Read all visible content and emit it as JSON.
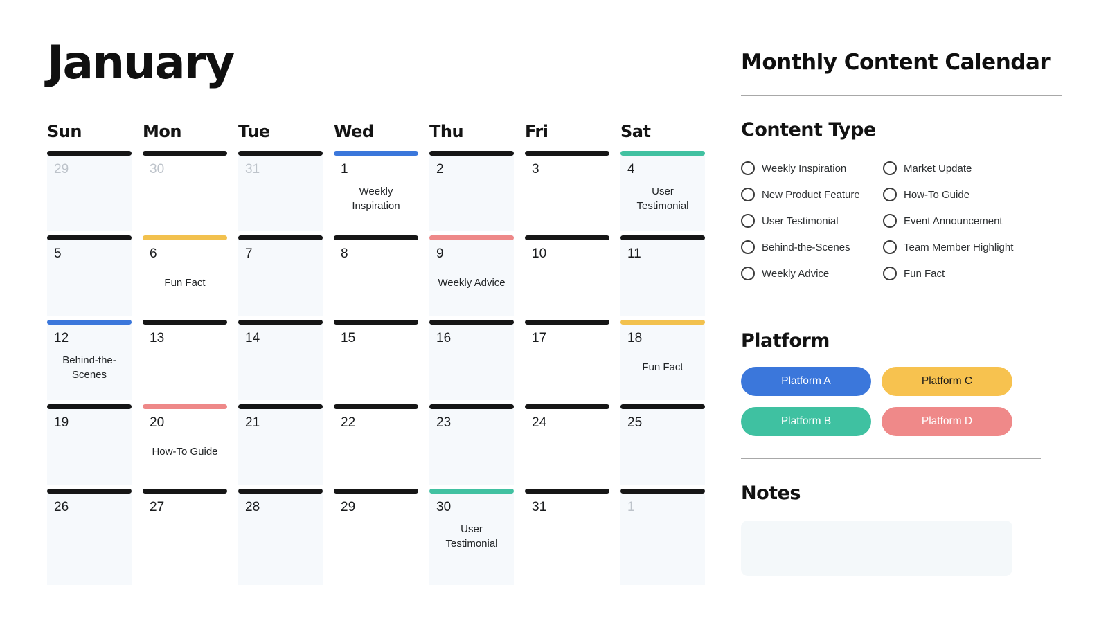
{
  "page": {
    "month_title": "January",
    "sidebar_title": "Monthly Content Calendar"
  },
  "colors": {
    "bars": {
      "black": "#161616",
      "blue": "#3b77db",
      "yellow": "#f2c14e",
      "salmon": "#ee8888",
      "teal": "#41c1a1"
    },
    "cell_tint": "#f6f9fc"
  },
  "calendar": {
    "weekdays": [
      "Sun",
      "Mon",
      "Tue",
      "Wed",
      "Thu",
      "Fri",
      "Sat"
    ],
    "cells": [
      {
        "day": "29",
        "muted": true,
        "bar": "black",
        "label": ""
      },
      {
        "day": "30",
        "muted": true,
        "bar": "black",
        "label": ""
      },
      {
        "day": "31",
        "muted": true,
        "bar": "black",
        "label": ""
      },
      {
        "day": "1",
        "muted": false,
        "bar": "blue",
        "label": "Weekly Inspiration"
      },
      {
        "day": "2",
        "muted": false,
        "bar": "black",
        "label": ""
      },
      {
        "day": "3",
        "muted": false,
        "bar": "black",
        "label": ""
      },
      {
        "day": "4",
        "muted": false,
        "bar": "teal",
        "label": "User Testimonial"
      },
      {
        "day": "5",
        "muted": false,
        "bar": "black",
        "label": ""
      },
      {
        "day": "6",
        "muted": false,
        "bar": "yellow",
        "label": "Fun Fact"
      },
      {
        "day": "7",
        "muted": false,
        "bar": "black",
        "label": ""
      },
      {
        "day": "8",
        "muted": false,
        "bar": "black",
        "label": ""
      },
      {
        "day": "9",
        "muted": false,
        "bar": "salmon",
        "label": "Weekly Advice"
      },
      {
        "day": "10",
        "muted": false,
        "bar": "black",
        "label": ""
      },
      {
        "day": "11",
        "muted": false,
        "bar": "black",
        "label": ""
      },
      {
        "day": "12",
        "muted": false,
        "bar": "blue",
        "label": "Behind-the-Scenes"
      },
      {
        "day": "13",
        "muted": false,
        "bar": "black",
        "label": ""
      },
      {
        "day": "14",
        "muted": false,
        "bar": "black",
        "label": ""
      },
      {
        "day": "15",
        "muted": false,
        "bar": "black",
        "label": ""
      },
      {
        "day": "16",
        "muted": false,
        "bar": "black",
        "label": ""
      },
      {
        "day": "17",
        "muted": false,
        "bar": "black",
        "label": ""
      },
      {
        "day": "18",
        "muted": false,
        "bar": "yellow",
        "label": "Fun Fact"
      },
      {
        "day": "19",
        "muted": false,
        "bar": "black",
        "label": ""
      },
      {
        "day": "20",
        "muted": false,
        "bar": "salmon",
        "label": "How-To Guide"
      },
      {
        "day": "21",
        "muted": false,
        "bar": "black",
        "label": ""
      },
      {
        "day": "22",
        "muted": false,
        "bar": "black",
        "label": ""
      },
      {
        "day": "23",
        "muted": false,
        "bar": "black",
        "label": ""
      },
      {
        "day": "24",
        "muted": false,
        "bar": "black",
        "label": ""
      },
      {
        "day": "25",
        "muted": false,
        "bar": "black",
        "label": ""
      },
      {
        "day": "26",
        "muted": false,
        "bar": "black",
        "label": ""
      },
      {
        "day": "27",
        "muted": false,
        "bar": "black",
        "label": ""
      },
      {
        "day": "28",
        "muted": false,
        "bar": "black",
        "label": ""
      },
      {
        "day": "29",
        "muted": false,
        "bar": "black",
        "label": ""
      },
      {
        "day": "30",
        "muted": false,
        "bar": "teal",
        "label": "User Testimonial"
      },
      {
        "day": "31",
        "muted": false,
        "bar": "black",
        "label": ""
      },
      {
        "day": "1",
        "muted": true,
        "bar": "black",
        "label": ""
      }
    ]
  },
  "content_type": {
    "heading": "Content Type",
    "options_left": [
      "Weekly Inspiration",
      "New Product Feature",
      "User Testimonial",
      "Behind-the-Scenes",
      "Weekly Advice"
    ],
    "options_right": [
      "Market Update",
      "How-To Guide",
      "Event Announcement",
      "Team Member Highlight",
      "Fun Fact"
    ]
  },
  "platform": {
    "heading": "Platform",
    "buttons": [
      {
        "label": "Platform A",
        "color": "#3b77db",
        "text_color": "#ffffff"
      },
      {
        "label": "Platform C",
        "color": "#f7c24f",
        "text_color": "#1b1b1b"
      },
      {
        "label": "Platform B",
        "color": "#3fc1a1",
        "text_color": "#ffffff"
      },
      {
        "label": "Platform D",
        "color": "#ef8989",
        "text_color": "#ffffff"
      }
    ]
  },
  "notes": {
    "heading": "Notes"
  }
}
